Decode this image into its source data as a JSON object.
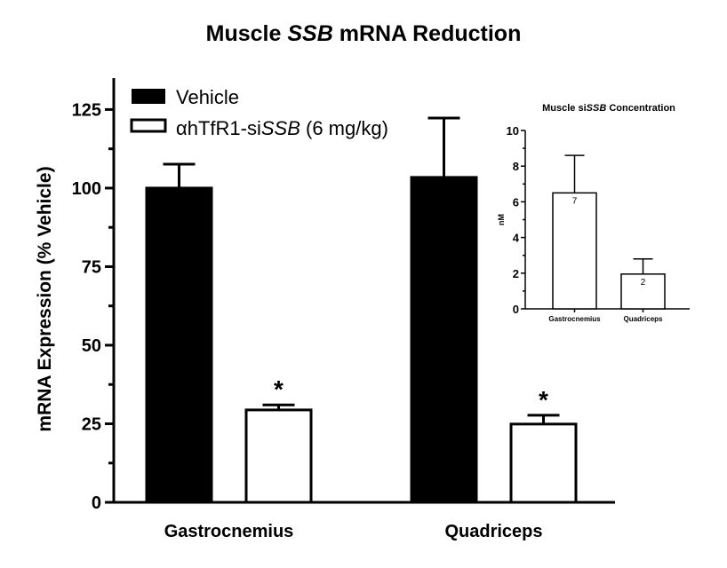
{
  "chart_data": [
    {
      "type": "bar",
      "title": "Muscle SSB mRNA Reduction",
      "title_parts": {
        "pre": "Muscle ",
        "italic": "SSB",
        "post": " mRNA Reduction"
      },
      "xlabel": "",
      "ylabel": "mRNA  Expression  (% Vehicle)",
      "ylim": [
        0,
        135
      ],
      "yticks": [
        0,
        25,
        50,
        75,
        100,
        125
      ],
      "categories": [
        "Gastrocnemius",
        "Quadriceps"
      ],
      "legend_position": "top-left",
      "grid": false,
      "series": [
        {
          "name": "Vehicle",
          "name_parts": {
            "pre": "Vehicle",
            "italic": "",
            "post": ""
          },
          "color": "#000000",
          "fill": "solid",
          "values": [
            100,
            103.4
          ],
          "error_upper": [
            107.6,
            122.3
          ]
        },
        {
          "name": "αhTfR1-siSSB (6 mg/kg)",
          "name_parts": {
            "pre": "αhTfR1-si",
            "italic": "SSB",
            "post": " (6 mg/kg)"
          },
          "color": "#ffffff",
          "fill": "open",
          "values": [
            29.4,
            24.9
          ],
          "error_upper": [
            31.0,
            27.7
          ],
          "annotations": [
            "*",
            "*"
          ]
        }
      ]
    },
    {
      "type": "bar",
      "title": "Muscle siSSB Concentration",
      "title_parts": {
        "pre": "Muscle si",
        "italic": "SSB",
        "post": " Concentration"
      },
      "ylabel": "nM",
      "ylim": [
        0,
        10
      ],
      "yticks": [
        0,
        2,
        4,
        6,
        8,
        10
      ],
      "categories": [
        "Gastrocnemius",
        "Quadriceps"
      ],
      "grid": false,
      "series": [
        {
          "values": [
            6.5,
            1.95
          ],
          "error_upper": [
            8.6,
            2.8
          ],
          "data_labels": [
            "7",
            "2"
          ],
          "fill": "open"
        }
      ]
    }
  ]
}
